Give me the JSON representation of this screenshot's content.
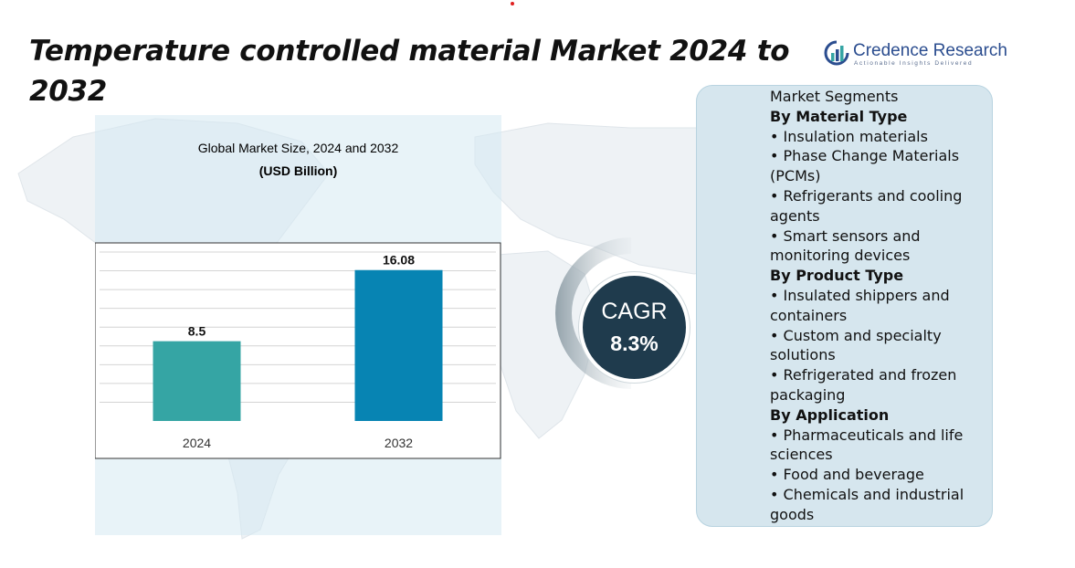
{
  "header": {
    "title": "Temperature controlled material Market 2024 to 2032"
  },
  "logo": {
    "name": "Credence Research",
    "tagline": "Actionable Insights Delivered"
  },
  "chart_data": {
    "type": "bar",
    "title": "Global Market Size, 2024 and 2032",
    "unit": "(USD Billion)",
    "categories": [
      "2024",
      "2032"
    ],
    "values": [
      8.5,
      16.08
    ],
    "data_labels": [
      "8.5",
      "16.08"
    ],
    "colors": [
      "#35a5a4",
      "#0784b3"
    ],
    "ylim": [
      0,
      18
    ],
    "grid": true,
    "xlabel": "",
    "ylabel": ""
  },
  "cagr": {
    "label": "CAGR",
    "value": "8.3%"
  },
  "segments": {
    "header": "Market Segments",
    "groups": [
      {
        "title": "By Material Type",
        "items": [
          "•  Insulation materials",
          "•  Phase Change Materials (PCMs)",
          "•  Refrigerants and cooling agents",
          "•  Smart sensors and monitoring devices"
        ]
      },
      {
        "title": "By Product Type",
        "items": [
          "• Insulated shippers and containers",
          "•  Custom and specialty solutions",
          "•  Refrigerated and frozen packaging"
        ]
      },
      {
        "title": "By Application",
        "items": [
          "•   Pharmaceuticals and life sciences",
          "•    Food and beverage",
          "•   Chemicals and industrial goods"
        ]
      }
    ]
  },
  "colors": {
    "cagr_circle": "#1f3b4d",
    "segment_panel": "#d6e6ee",
    "chart_panel": "#d6e9f2",
    "logo_blue": "#2b4d8f"
  }
}
